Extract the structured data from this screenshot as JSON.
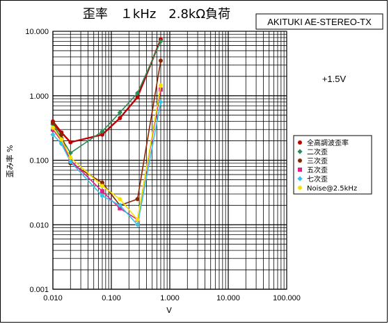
{
  "chart_data": {
    "type": "line",
    "title": "歪率　１kHz　2.8kΩ負荷",
    "subtitle": "AKITUKI AE-STEREO-TX",
    "annotation": "+1.5V",
    "xlabel": "V",
    "ylabel": "歪み率 %",
    "xscale": "log",
    "yscale": "log",
    "xlim": [
      0.01,
      100
    ],
    "ylim": [
      0.001,
      10
    ],
    "grid": true,
    "legend_position": "right",
    "x_tick_labels": [
      "0.010",
      "0.100",
      "1.000",
      "10.000",
      "100.000"
    ],
    "y_tick_labels": [
      "0.001",
      "0.010",
      "0.100",
      "1.000",
      "10.000"
    ],
    "series": [
      {
        "name": "全高調波歪率",
        "color": "#c00000",
        "marker": "circle",
        "points": [
          [
            0.01,
            0.4
          ],
          [
            0.014,
            0.27
          ],
          [
            0.02,
            0.19
          ],
          [
            0.07,
            0.25
          ],
          [
            0.14,
            0.45
          ],
          [
            0.28,
            0.95
          ],
          [
            0.7,
            7.5
          ]
        ]
      },
      {
        "name": "二次歪",
        "color": "#2e8b57",
        "marker": "diamond",
        "points": [
          [
            0.01,
            0.36
          ],
          [
            0.014,
            0.22
          ],
          [
            0.02,
            0.13
          ],
          [
            0.07,
            0.28
          ],
          [
            0.14,
            0.55
          ],
          [
            0.28,
            1.1
          ],
          [
            0.7,
            7.0
          ]
        ]
      },
      {
        "name": "三次歪",
        "color": "#8b2500",
        "marker": "circle",
        "points": [
          [
            0.01,
            0.38
          ],
          [
            0.014,
            0.25
          ],
          [
            0.02,
            0.09
          ],
          [
            0.07,
            0.045
          ],
          [
            0.14,
            0.02
          ],
          [
            0.28,
            0.025
          ],
          [
            0.7,
            3.5
          ]
        ]
      },
      {
        "name": "五次歪",
        "color": "#e0218a",
        "marker": "square",
        "points": [
          [
            0.01,
            0.3
          ],
          [
            0.014,
            0.2
          ],
          [
            0.02,
            0.1
          ],
          [
            0.07,
            0.033
          ],
          [
            0.14,
            0.018
          ],
          [
            0.28,
            0.012
          ],
          [
            0.7,
            1.25
          ]
        ]
      },
      {
        "name": "七次歪",
        "color": "#33c3e8",
        "marker": "diamond",
        "points": [
          [
            0.01,
            0.25
          ],
          [
            0.014,
            0.18
          ],
          [
            0.02,
            0.095
          ],
          [
            0.07,
            0.028
          ],
          [
            0.14,
            0.02
          ],
          [
            0.28,
            0.01
          ],
          [
            0.7,
            0.8
          ]
        ]
      },
      {
        "name": "Noise@2.5kHz",
        "color": "#f4e300",
        "marker": "circle",
        "points": [
          [
            0.01,
            0.32
          ],
          [
            0.014,
            0.21
          ],
          [
            0.02,
            0.11
          ],
          [
            0.07,
            0.04
          ],
          [
            0.14,
            0.025
          ],
          [
            0.28,
            0.012
          ],
          [
            0.7,
            1.45
          ]
        ]
      }
    ]
  }
}
